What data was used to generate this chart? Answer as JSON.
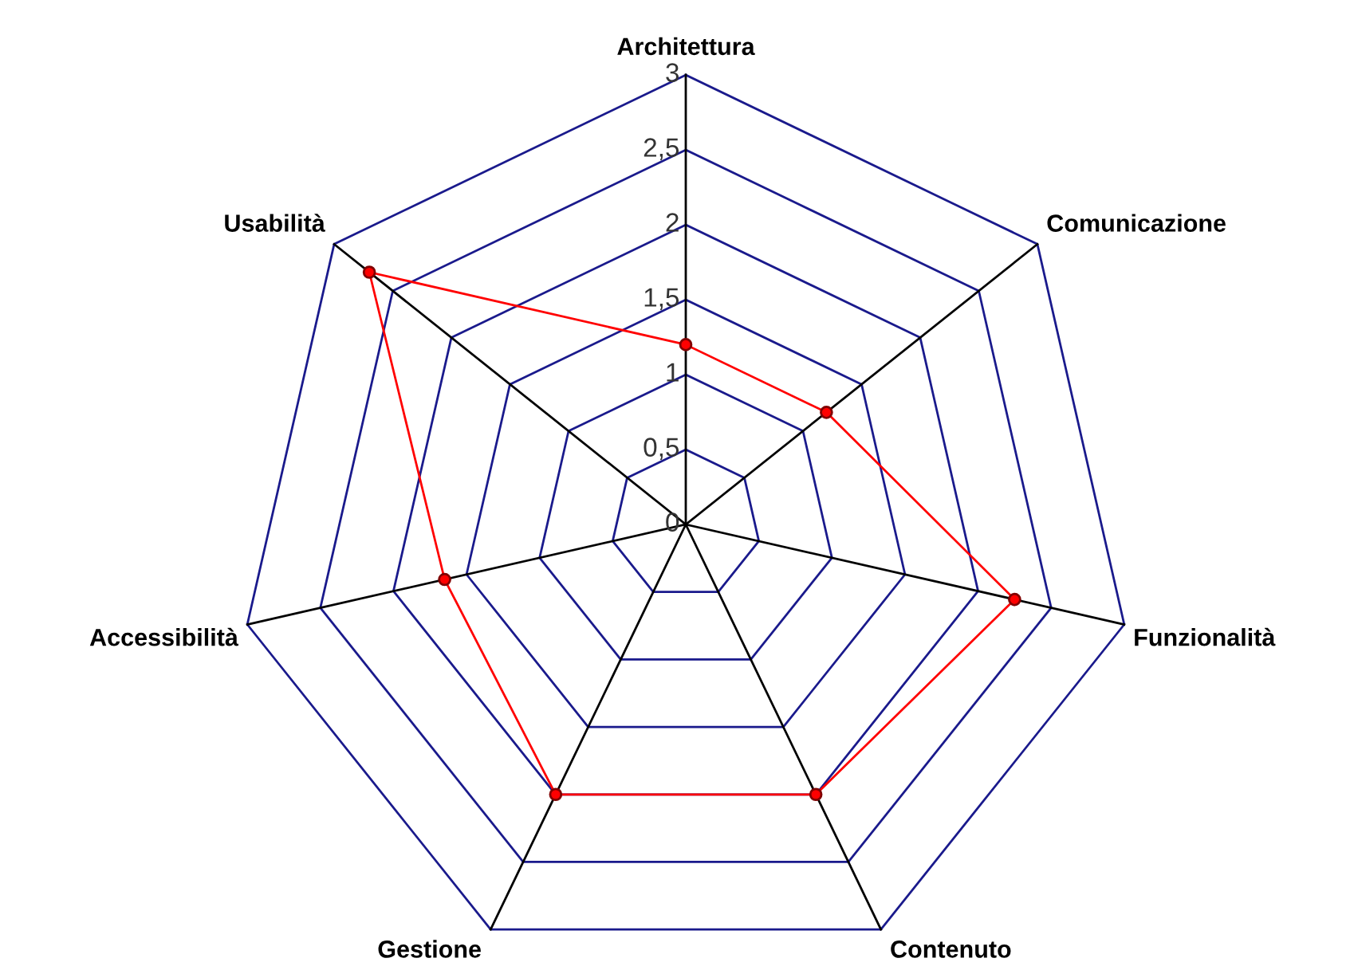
{
  "chart_data": {
    "type": "radar",
    "categories": [
      "Architettura",
      "Comunicazione",
      "Funzionalità",
      "Contenuto",
      "Gestione",
      "Accessibilità",
      "Usabilità"
    ],
    "series": [
      {
        "color": "#ff0000",
        "values": [
          1.2,
          1.2,
          2.25,
          2,
          2,
          1.65,
          2.7
        ]
      }
    ],
    "ylim": [
      0,
      3
    ],
    "yticks": [
      0,
      {
        "value": 0.5,
        "label": "0,5"
      },
      1,
      {
        "value": 1.5,
        "label": "1,5"
      },
      2,
      {
        "value": 2.5,
        "label": "2,5"
      },
      3
    ],
    "grid": true,
    "marker": "circle"
  }
}
